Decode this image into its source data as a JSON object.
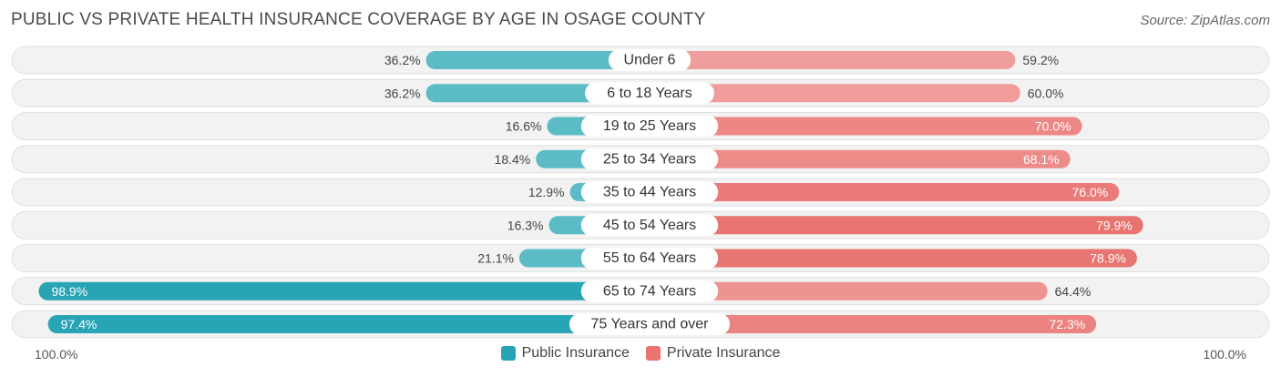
{
  "header": {
    "title": "PUBLIC VS PRIVATE HEALTH INSURANCE COVERAGE BY AGE IN OSAGE COUNTY",
    "source": "Source: ZipAtlas.com"
  },
  "axis": {
    "left_label": "100.0%",
    "right_label": "100.0%"
  },
  "legend": {
    "public_label": "Public Insurance",
    "private_label": "Private Insurance"
  },
  "colors": {
    "public": "#5bbcc6",
    "public_dark": "#27a5b5",
    "private": "#f2a6a6",
    "private_dark": "#e8736f",
    "row_bg": "#f2f2f2",
    "row_border": "#e0e0e0"
  },
  "chart_data": {
    "type": "bar",
    "orientation": "horizontal-diverging",
    "title": "PUBLIC VS PRIVATE HEALTH INSURANCE COVERAGE BY AGE IN OSAGE COUNTY",
    "categories": [
      "Under 6",
      "6 to 18 Years",
      "19 to 25 Years",
      "25 to 34 Years",
      "35 to 44 Years",
      "45 to 54 Years",
      "55 to 64 Years",
      "65 to 74 Years",
      "75 Years and over"
    ],
    "series": [
      {
        "name": "Public Insurance",
        "values": [
          36.2,
          36.2,
          16.6,
          18.4,
          12.9,
          16.3,
          21.1,
          98.9,
          97.4
        ],
        "labels": [
          "36.2%",
          "36.2%",
          "16.6%",
          "18.4%",
          "12.9%",
          "16.3%",
          "21.1%",
          "98.9%",
          "97.4%"
        ]
      },
      {
        "name": "Private Insurance",
        "values": [
          59.2,
          60.0,
          70.0,
          68.1,
          76.0,
          79.9,
          78.9,
          64.4,
          72.3
        ],
        "labels": [
          "59.2%",
          "60.0%",
          "70.0%",
          "68.1%",
          "76.0%",
          "79.9%",
          "78.9%",
          "64.4%",
          "72.3%"
        ]
      }
    ],
    "xlim": [
      -100,
      100
    ],
    "legend_position": "bottom-center"
  }
}
